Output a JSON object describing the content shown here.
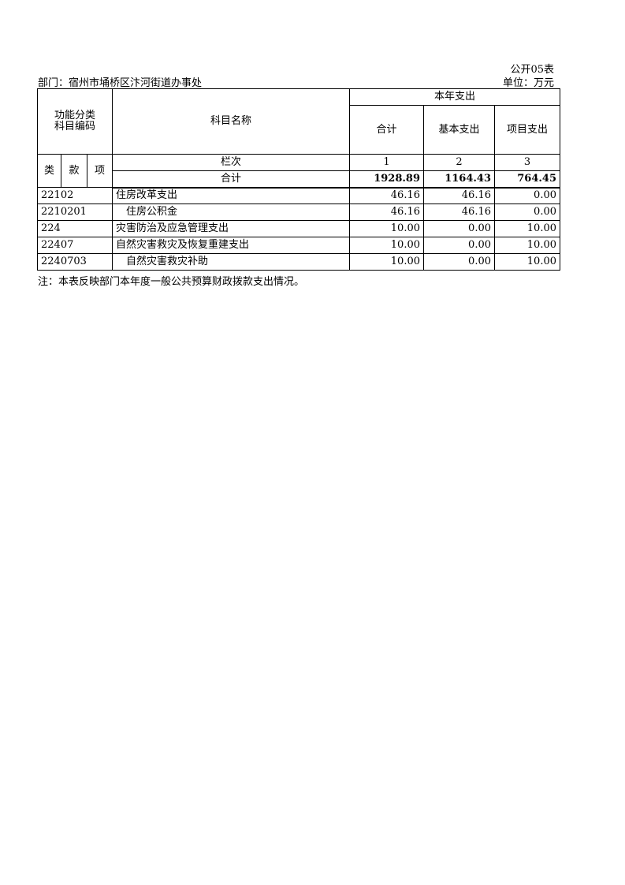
{
  "header": {
    "form_no": "公开05表",
    "department": "部门：宿州市埇桥区汴河街道办事处",
    "unit": "单位：万元"
  },
  "table": {
    "code_header": [
      "功能分类",
      "科目编码"
    ],
    "name_header": "科目名称",
    "group_header": "本年支出",
    "columns": [
      "合计",
      "基本支出",
      "项目支出"
    ],
    "code_sub": [
      "类",
      "款",
      "项"
    ],
    "index_label": "栏次",
    "index_values": [
      "1",
      "2",
      "3"
    ],
    "total": {
      "label": "合计",
      "values": [
        "1928.89",
        "1164.43",
        "764.45"
      ]
    },
    "rows": [
      {
        "code": "22102",
        "name": "住房改革支出",
        "values": [
          "46.16",
          "46.16",
          "0.00"
        ]
      },
      {
        "code": "2210201",
        "name": "　住房公积金",
        "values": [
          "46.16",
          "46.16",
          "0.00"
        ]
      },
      {
        "code": "224",
        "name": "灾害防治及应急管理支出",
        "values": [
          "10.00",
          "0.00",
          "10.00"
        ]
      },
      {
        "code": "22407",
        "name": "自然灾害救灾及恢复重建支出",
        "values": [
          "10.00",
          "0.00",
          "10.00"
        ]
      },
      {
        "code": "2240703",
        "name": "　自然灾害救灾补助",
        "values": [
          "10.00",
          "0.00",
          "10.00"
        ]
      }
    ]
  },
  "note": "注：本表反映部门本年度一般公共预算财政拨款支出情况。"
}
